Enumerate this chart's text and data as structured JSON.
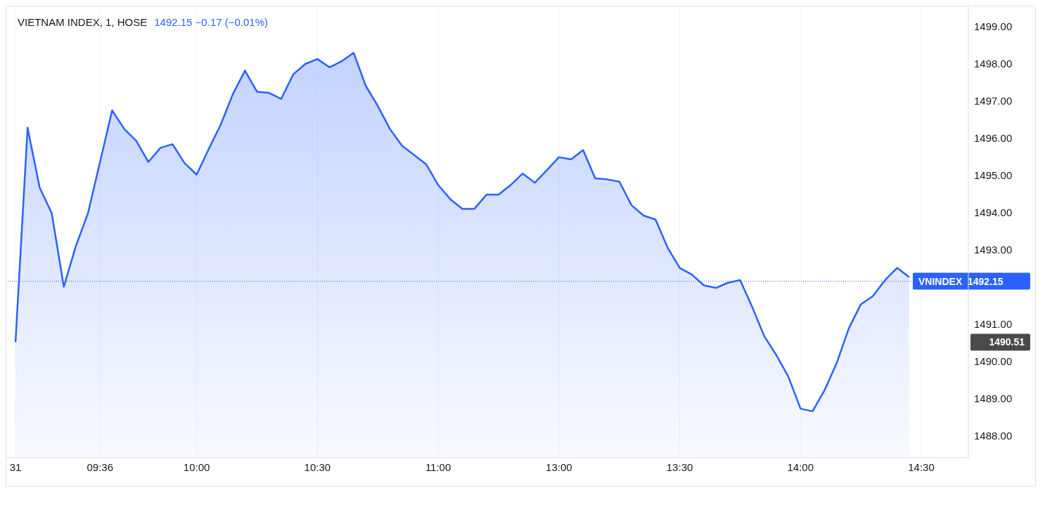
{
  "chart_data": {
    "type": "area",
    "title": "VIETNAM INDEX, 1, HOSE",
    "subtitle": "1492.15  −0.17 (−0.01%)",
    "categories": [
      "31",
      null,
      null,
      null,
      null,
      null,
      null,
      "09:36",
      null,
      null,
      null,
      null,
      null,
      null,
      null,
      "10:00",
      null,
      null,
      null,
      null,
      null,
      null,
      null,
      null,
      null,
      "10:30",
      null,
      null,
      null,
      null,
      null,
      null,
      null,
      null,
      null,
      "11:00",
      null,
      null,
      null,
      null,
      null,
      null,
      null,
      null,
      null,
      "13:00",
      null,
      null,
      null,
      null,
      null,
      null,
      null,
      null,
      null,
      "13:30",
      null,
      null,
      null,
      null,
      null,
      null,
      null,
      null,
      null,
      "14:00",
      null,
      null,
      null,
      null,
      null,
      null,
      null,
      null,
      null,
      "14:30"
    ],
    "series": [
      {
        "color": "#2962ff",
        "values": [
          1490.51,
          1496.28,
          1494.67,
          1493.98,
          1492.0,
          1493.1,
          1493.98,
          1495.36,
          1496.75,
          1496.25,
          1495.93,
          1495.36,
          1495.74,
          1495.84,
          1495.33,
          1495.02,
          1495.71,
          1496.37,
          1497.19,
          1497.82,
          1497.25,
          1497.22,
          1497.06,
          1497.72,
          1498.0,
          1498.13,
          1497.91,
          1498.07,
          1498.3,
          1497.41,
          1496.87,
          1496.25,
          1495.8,
          1495.55,
          1495.3,
          1494.74,
          1494.36,
          1494.1,
          1494.1,
          1494.48,
          1494.48,
          1494.74,
          1495.05,
          1494.8,
          1495.14,
          1495.49,
          1495.43,
          1495.68,
          1494.92,
          1494.89,
          1494.83,
          1494.2,
          1493.92,
          1493.81,
          1493.05,
          1492.51,
          1492.33,
          1492.04,
          1491.97,
          1492.11,
          1492.18,
          1491.46,
          1490.67,
          1490.16,
          1489.58,
          1488.72,
          1488.65,
          1489.22,
          1489.95,
          1490.88,
          1491.53,
          1491.75,
          1492.18,
          1492.51,
          1492.26,
          null
        ]
      }
    ],
    "ylim": [
      1487.4,
      1499.55
    ],
    "yticks": [
      {
        "value": 1488,
        "label": "1488.00"
      },
      {
        "value": 1489,
        "label": "1489.00"
      },
      {
        "value": 1490,
        "label": "1490.00"
      },
      {
        "value": 1491,
        "label": "1491.00"
      },
      {
        "value": 1493,
        "label": "1493.00"
      },
      {
        "value": 1494,
        "label": "1494.00"
      },
      {
        "value": 1495,
        "label": "1495.00"
      },
      {
        "value": 1496,
        "label": "1496.00"
      },
      {
        "value": 1497,
        "label": "1497.00"
      },
      {
        "value": 1498,
        "label": "1498.00"
      },
      {
        "value": 1499,
        "label": "1499.00"
      }
    ],
    "ref_lines": [
      {
        "axis": "y",
        "value": 1492.15,
        "label": "VNINDEX  1492.15",
        "color": "#2962ff",
        "line_style": "dotted"
      }
    ],
    "annotations": [
      "1490.51"
    ],
    "grid": true,
    "marker": "none",
    "line_style": "solid"
  }
}
